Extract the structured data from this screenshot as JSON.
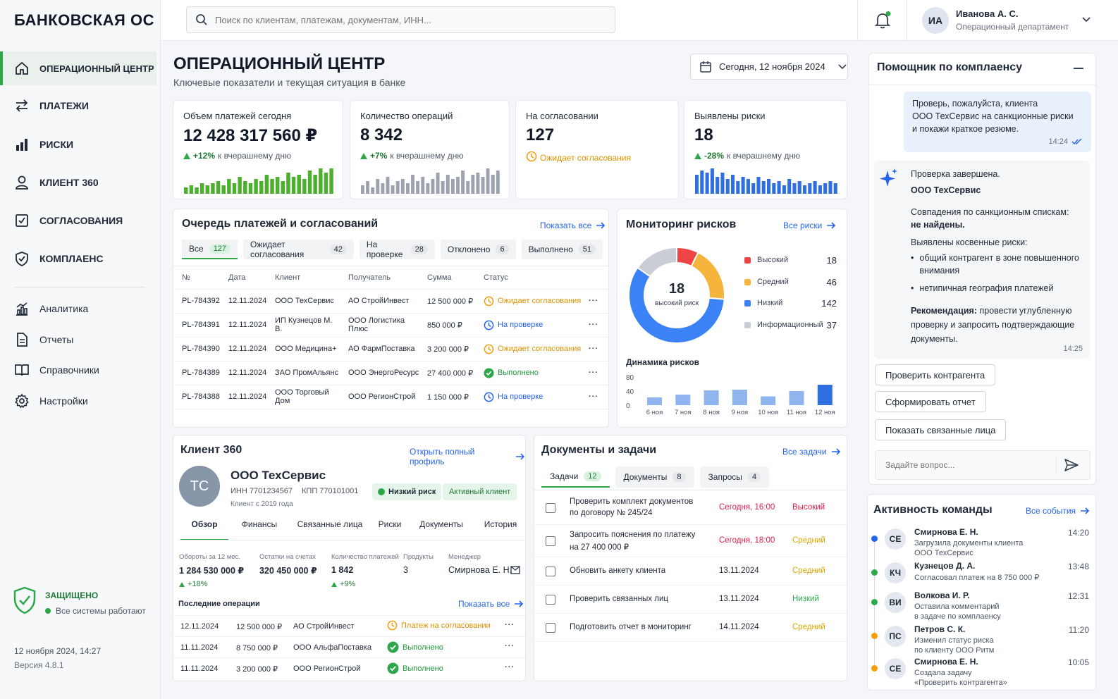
{
  "app": {
    "logo": "БАНКОВСКАЯ ОС"
  },
  "nav": {
    "main": [
      {
        "label": "ОПЕРАЦИОННЫЙ ЦЕНТР",
        "icon": "home-icon"
      },
      {
        "label": "ПЛАТЕЖИ",
        "icon": "transfer-icon"
      },
      {
        "label": "РИСКИ",
        "icon": "bar-chart-icon"
      },
      {
        "label": "КЛИЕНТ 360",
        "icon": "user-icon"
      },
      {
        "label": "СОГЛАСОВАНИЯ",
        "icon": "checkbox-icon"
      },
      {
        "label": "КОМПЛАЕНС",
        "icon": "shield-icon"
      }
    ],
    "secondary": [
      {
        "label": "Аналитика",
        "icon": "analytics-icon"
      },
      {
        "label": "Отчеты",
        "icon": "document-icon"
      },
      {
        "label": "Справочники",
        "icon": "book-icon"
      },
      {
        "label": "Настройки",
        "icon": "gear-icon"
      }
    ],
    "status_title": "ЗАЩИЩЕНО",
    "status_text": "Все системы работают",
    "datetime": "12 ноября 2024, 14:27",
    "version": "Версия 4.8.1"
  },
  "search": {
    "placeholder": "Поиск по клиентам, платежам, документам, ИНН..."
  },
  "user": {
    "initials": "ИА",
    "name": "Иванова А. С.",
    "dept": "Операционный департамент"
  },
  "page": {
    "title": "ОПЕРАЦИОННЫЙ ЦЕНТР",
    "subtitle": "Ключевые показатели и текущая ситуация в банке",
    "date": "Сегодня, 12 ноября 2024"
  },
  "kpis": [
    {
      "label": "Объем платежей сегодня",
      "value": "12 428 317 560 ₽",
      "delta": "+12%",
      "delta_text": "к вчерашнему дню",
      "color": "#4caf2e",
      "bars": [
        3,
        4,
        3,
        5,
        4,
        5,
        6,
        4,
        7,
        5,
        8,
        6,
        5,
        7,
        6,
        9,
        7,
        8,
        6,
        10,
        8,
        9,
        7,
        11,
        9,
        12,
        10,
        12
      ]
    },
    {
      "label": "Количество операций",
      "value": "8 342",
      "delta": "+7%",
      "delta_text": "к вчерашнему дню",
      "color": "#9ca3af",
      "bars": [
        4,
        6,
        3,
        7,
        5,
        8,
        4,
        6,
        7,
        5,
        9,
        6,
        8,
        5,
        7,
        10,
        6,
        9,
        7,
        8,
        11,
        6,
        9,
        10,
        8,
        12,
        9,
        11
      ]
    },
    {
      "label": "На согласовании",
      "value": "127",
      "delta": "",
      "delta_text": "Ожидает согласования",
      "color": "",
      "bars": []
    },
    {
      "label": "Выявлены риски",
      "value": "18",
      "delta": "-28%",
      "delta_text": "к вчерашнему дню",
      "color": "#2f6fe0",
      "bars": [
        9,
        11,
        10,
        12,
        8,
        10,
        7,
        9,
        6,
        8,
        7,
        5,
        8,
        6,
        7,
        5,
        6,
        4,
        7,
        5,
        6,
        4,
        5,
        6,
        4,
        5,
        6,
        5
      ]
    }
  ],
  "queue": {
    "title": "Очередь платежей и согласований",
    "show_all": "Показать все",
    "tabs": [
      {
        "label": "Все",
        "count": "127"
      },
      {
        "label": "Ожидает согласования",
        "count": "42"
      },
      {
        "label": "На проверке",
        "count": "28"
      },
      {
        "label": "Отклонено",
        "count": "6"
      },
      {
        "label": "Выполнено",
        "count": "51"
      }
    ],
    "columns": [
      "№",
      "Дата",
      "Клиент",
      "Получатель",
      "Сумма",
      "Статус"
    ],
    "rows": [
      {
        "id": "PL-784392",
        "date": "12.11.2024",
        "client": "ООО ТехСервис",
        "recipient": "АО СтройИнвест",
        "amount": "12 500 000 ₽",
        "status": "Ожидает согласования",
        "kind": "pending"
      },
      {
        "id": "PL-784391",
        "date": "12.11.2024",
        "client": "ИП Кузнецов М. В.",
        "recipient": "ООО Логистика Плюс",
        "amount": "850 000 ₽",
        "status": "На проверке",
        "kind": "review"
      },
      {
        "id": "PL-784390",
        "date": "12.11.2024",
        "client": "ООО Медицина+",
        "recipient": "АО ФармПоставка",
        "amount": "3 200 000 ₽",
        "status": "Ожидает согласования",
        "kind": "pending"
      },
      {
        "id": "PL-784389",
        "date": "12.11.2024",
        "client": "ЗАО ПромАльянс",
        "recipient": "ООО ЭнергоРесурс",
        "amount": "27 400 000 ₽",
        "status": "Выполнено",
        "kind": "done"
      },
      {
        "id": "PL-784388",
        "date": "12.11.2024",
        "client": "ООО Торговый Дом",
        "recipient": "ООО РегионСтрой",
        "amount": "1 150 000 ₽",
        "status": "На проверке",
        "kind": "review"
      }
    ]
  },
  "risks": {
    "title": "Мониторинг рисков",
    "all_link": "Все риски",
    "center_value": "18",
    "center_label": "высокий риск",
    "legend": [
      {
        "label": "Высокий",
        "value": "18",
        "color": "#ef4444"
      },
      {
        "label": "Средний",
        "value": "46",
        "color": "#f5b53d"
      },
      {
        "label": "Низкий",
        "value": "142",
        "color": "#3b82f6"
      },
      {
        "label": "Информационный",
        "value": "37",
        "color": "#c9ced6"
      }
    ],
    "dynamics_title": "Динамика рисков"
  },
  "chart_data": {
    "type": "bar",
    "categories": [
      "6 ноя",
      "7 ноя",
      "8 ноя",
      "9 ноя",
      "10 ноя",
      "11 ноя",
      "12 ноя"
    ],
    "values": [
      22,
      30,
      42,
      44,
      25,
      40,
      58
    ],
    "ylim": [
      0,
      80
    ],
    "yticks": [
      "80",
      "40",
      "0"
    ]
  },
  "client": {
    "section": "Клиент 360",
    "open_profile": "Открыть полный профиль",
    "initials": "ТС",
    "name": "ООО ТехСервис",
    "inn": "ИНН  7701234567",
    "kpp": "КПП  770101001",
    "since": "Клиент с 2019 года",
    "risk_badge": "Низкий риск",
    "active_badge": "Активный клиент",
    "tabs": [
      "Обзор",
      "Финансы",
      "Связанные лица",
      "Риски",
      "Документы",
      "История"
    ],
    "metrics": [
      {
        "label": "Обороты за 12 мес.",
        "value": "1 284 530 000 ₽",
        "delta": "+18%"
      },
      {
        "label": "Остатки на счетах",
        "value": "320 450 000 ₽",
        "delta": ""
      },
      {
        "label": "Количество платежей",
        "value": "1 842",
        "delta": "+9%"
      },
      {
        "label": "Продукты",
        "value": "3",
        "delta": ""
      },
      {
        "label": "Менеджер",
        "value": "Смирнова Е. Н.",
        "delta": ""
      }
    ],
    "ops_title": "Последние операции",
    "ops_show_all": "Показать все",
    "ops": [
      {
        "date": "12.11.2024",
        "amount": "12 500 000 ₽",
        "party": "АО СтройИнвест",
        "status": "Платеж на согласовании",
        "kind": "pending"
      },
      {
        "date": "11.11.2024",
        "amount": "8 750 000 ₽",
        "party": "ООО АльфаПоставка",
        "status": "Выполнено",
        "kind": "done"
      },
      {
        "date": "11.11.2024",
        "amount": "3 200 000 ₽",
        "party": "ООО РегионСтрой",
        "status": "Выполнено",
        "kind": "done"
      }
    ]
  },
  "docs": {
    "title": "Документы и задачи",
    "all_link": "Все задачи",
    "tabs": [
      {
        "label": "Задачи",
        "count": "12"
      },
      {
        "label": "Документы",
        "count": "8"
      },
      {
        "label": "Запросы",
        "count": "4"
      }
    ],
    "tasks": [
      {
        "text": "Проверить комплект документов",
        "text2": "по договору № 245/24",
        "due": "Сегодня, 16:00",
        "due_color": "#e11d48",
        "prio": "Высокий",
        "prio_color": "#e11d48"
      },
      {
        "text": "Запросить пояснения по платежу",
        "text2": "на 27 400 000 ₽",
        "due": "Сегодня, 18:00",
        "due_color": "#e11d48",
        "prio": "Средний",
        "prio_color": "#e0a400"
      },
      {
        "text": "Обновить анкету клиента",
        "text2": "",
        "due": "13.11.2024",
        "due_color": "#1f2937",
        "prio": "Средний",
        "prio_color": "#e0a400"
      },
      {
        "text": "Проверить связанных лиц",
        "text2": "",
        "due": "13.11.2024",
        "due_color": "#1f2937",
        "prio": "Низкий",
        "prio_color": "#2ca84a"
      },
      {
        "text": "Подготовить отчет в мониторинг",
        "text2": "",
        "due": "14.11.2024",
        "due_color": "#1f2937",
        "prio": "Средний",
        "prio_color": "#e0a400"
      }
    ]
  },
  "assistant": {
    "title": "Помощник по комплаенсу",
    "user_msg": [
      "Проверь, пожалуйста, клиента",
      "ООО ТехСервис на санкционные риски",
      "и покажи краткое резюме."
    ],
    "user_time": "14:24",
    "bot_head": "Проверка завершена.",
    "bot_company": "ООО ТехСервис",
    "bot_sanctions": "Совпадения по санкционным спискам:",
    "bot_sanctions_result": "не найдены.",
    "bot_indirect": "Выявлены косвенные риски:",
    "bot_bullets": [
      "общий контрагент в зоне повышенного внимания",
      "нетипичная география платежей"
    ],
    "bot_rec_label": "Рекомендация:",
    "bot_rec_text": "провести углубленную проверку и запросить подтверждающие документы.",
    "bot_time": "14:25",
    "actions": [
      "Проверить контрагента",
      "Сформировать отчет",
      "Показать связанные лица"
    ],
    "input_placeholder": "Задайте вопрос..."
  },
  "team": {
    "title": "Активность команды",
    "all_link": "Все события",
    "events": [
      {
        "initials": "СЕ",
        "name": "Смирнова Е. Н.",
        "text": "Загрузила документы клиента",
        "text2": "ООО ТехСервис",
        "time": "14:20",
        "dot": "#2563eb"
      },
      {
        "initials": "КЧ",
        "name": "Кузнецов Д. А.",
        "text": "Согласовал платеж на 8 750 000 ₽",
        "text2": "",
        "time": "13:48",
        "dot": "#2ca84a"
      },
      {
        "initials": "ВИ",
        "name": "Волкова И. Р.",
        "text": "Оставила комментарий",
        "text2": "в задаче по комплаенсу",
        "time": "12:31",
        "dot": "#2ca84a"
      },
      {
        "initials": "ПС",
        "name": "Петров С. К.",
        "text": "Изменил статус риска",
        "text2": "по клиенту ООО Ритм",
        "time": "11:20",
        "dot": "#f59e0b"
      },
      {
        "initials": "СЕ",
        "name": "Смирнова Е. Н.",
        "text": "Создала задачу",
        "text2": "«Проверить контрагента»",
        "time": "10:05",
        "dot": "#f59e0b"
      }
    ]
  }
}
